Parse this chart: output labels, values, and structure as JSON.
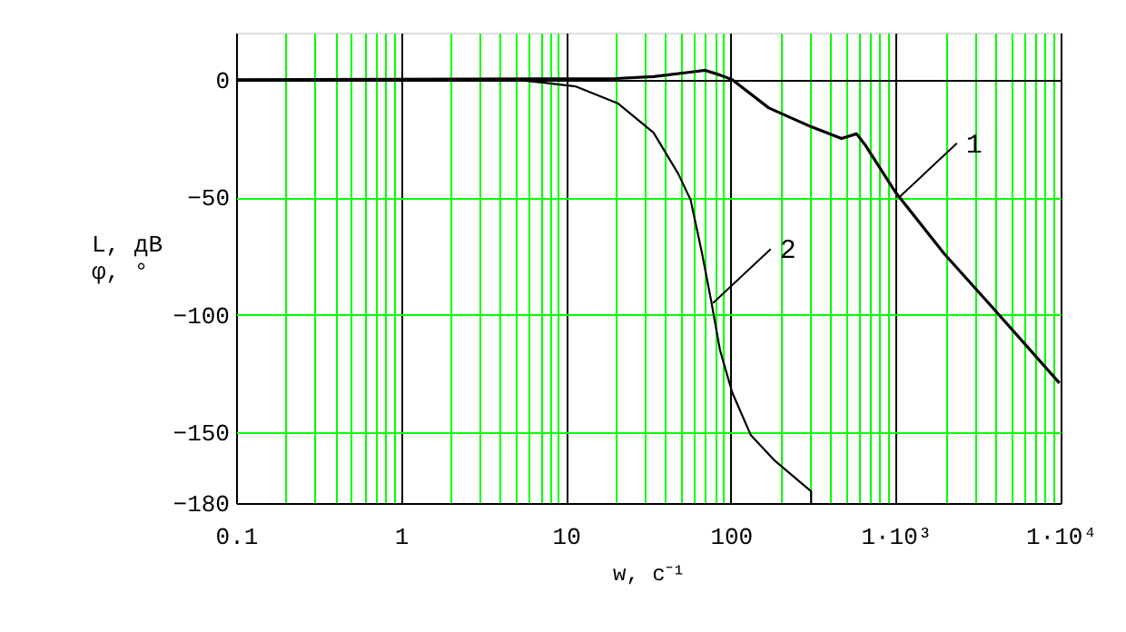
{
  "chart_data": {
    "type": "line",
    "xlabel": "w, с⁻¹",
    "ylabel": [
      "L,  дВ",
      "φ,  °"
    ],
    "log": "x",
    "grid": true,
    "xlim": [
      0.1,
      10000
    ],
    "ylim": [
      -180,
      20
    ],
    "xticks": [
      0.1,
      {
        "value": 0.2,
        "label": null
      },
      {
        "value": 0.3,
        "label": null
      },
      {
        "value": 0.4,
        "label": null
      },
      {
        "value": 0.5,
        "label": null
      },
      {
        "value": 0.6,
        "label": null
      },
      {
        "value": 0.7,
        "label": null
      },
      {
        "value": 0.8,
        "label": null
      },
      {
        "value": 0.9,
        "label": null
      },
      1,
      {
        "value": 2,
        "label": null
      },
      {
        "value": 3,
        "label": null
      },
      {
        "value": 4,
        "label": null
      },
      {
        "value": 5,
        "label": null
      },
      {
        "value": 6,
        "label": null
      },
      {
        "value": 7,
        "label": null
      },
      {
        "value": 8,
        "label": null
      },
      {
        "value": 9,
        "label": null
      },
      10,
      {
        "value": 20,
        "label": null
      },
      {
        "value": 30,
        "label": null
      },
      {
        "value": 40,
        "label": null
      },
      {
        "value": 50,
        "label": null
      },
      {
        "value": 60,
        "label": null
      },
      {
        "value": 70,
        "label": null
      },
      {
        "value": 80,
        "label": null
      },
      {
        "value": 90,
        "label": null
      },
      100,
      {
        "value": 200,
        "label": null
      },
      {
        "value": 300,
        "label": null
      },
      {
        "value": 400,
        "label": null
      },
      {
        "value": 500,
        "label": null
      },
      {
        "value": 600,
        "label": null
      },
      {
        "value": 700,
        "label": null
      },
      {
        "value": 800,
        "label": null
      },
      {
        "value": 900,
        "label": null
      },
      {
        "value": 1000,
        "label": "1·10³"
      },
      {
        "value": 2000,
        "label": null
      },
      {
        "value": 3000,
        "label": null
      },
      {
        "value": 4000,
        "label": null
      },
      {
        "value": 5000,
        "label": null
      },
      {
        "value": 6000,
        "label": null
      },
      {
        "value": 7000,
        "label": null
      },
      {
        "value": 8000,
        "label": null
      },
      {
        "value": 9000,
        "label": null
      },
      {
        "value": 10000,
        "label": "1·10⁴"
      }
    ],
    "yticks": [
      0,
      -50,
      -100,
      -150,
      -180
    ],
    "line_style": "solid",
    "marker": "none",
    "series": [
      {
        "color": "#000000",
        "x": [
          0.1,
          20,
          34,
          70,
          86,
          102,
          170,
          307,
          469,
          579,
          657,
          1000,
          1970,
          3880,
          9840
        ],
        "values": [
          0,
          0.5,
          1.3,
          4,
          2,
          0,
          -12,
          -20,
          -25,
          -23,
          -28,
          -48,
          -74,
          -97,
          -129
        ]
      },
      {
        "color": "#000000",
        "x": [
          0.1,
          5,
          7.4,
          11.4,
          20.6,
          34,
          48,
          57,
          67,
          76,
          86,
          102,
          132,
          185,
          307,
          307
        ],
        "values": [
          0,
          0,
          -1.3,
          -2.8,
          -10,
          -22.5,
          -40,
          -51,
          -74,
          -94,
          -115,
          -133,
          -151,
          -162,
          -175,
          -180
        ]
      }
    ],
    "annotations": [
      {
        "text": "1",
        "x": 1050,
        "y": -50
      },
      {
        "text": "2",
        "x": 78,
        "y": -95
      }
    ]
  }
}
